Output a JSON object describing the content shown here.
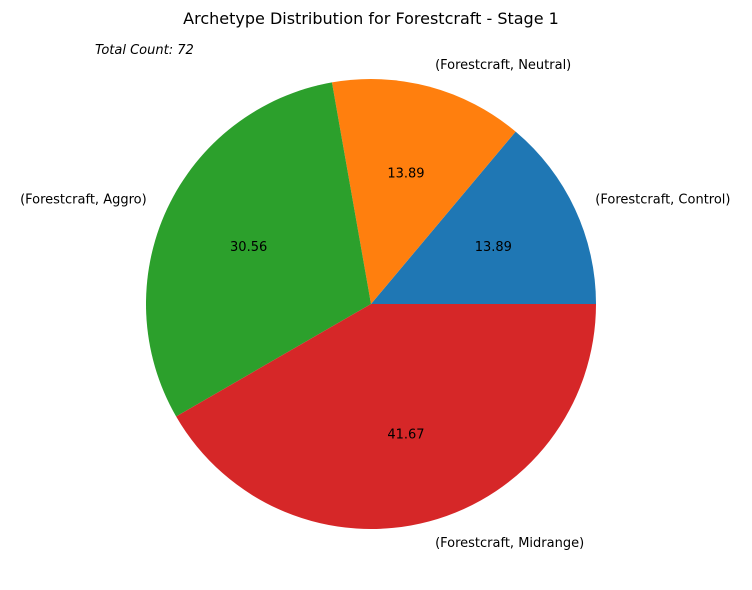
{
  "chart_data": {
    "type": "pie",
    "title": "Archetype Distribution for Forestcraft - Stage 1",
    "annotation": "Total Count: 72",
    "slices": [
      {
        "label": "(Forestcraft, Control)",
        "value": 13.89,
        "display": "13.89",
        "color": "#1f77b4"
      },
      {
        "label": "(Forestcraft, Neutral)",
        "value": 13.89,
        "display": "13.89",
        "color": "#ff7f0e"
      },
      {
        "label": "(Forestcraft, Aggro)",
        "value": 30.56,
        "display": "30.56",
        "color": "#2ca02c"
      },
      {
        "label": "(Forestcraft, Midrange)",
        "value": 41.67,
        "display": "41.67",
        "color": "#d62728"
      }
    ],
    "start_angle": 0,
    "direction": "counterclockwise",
    "legend": "none"
  }
}
